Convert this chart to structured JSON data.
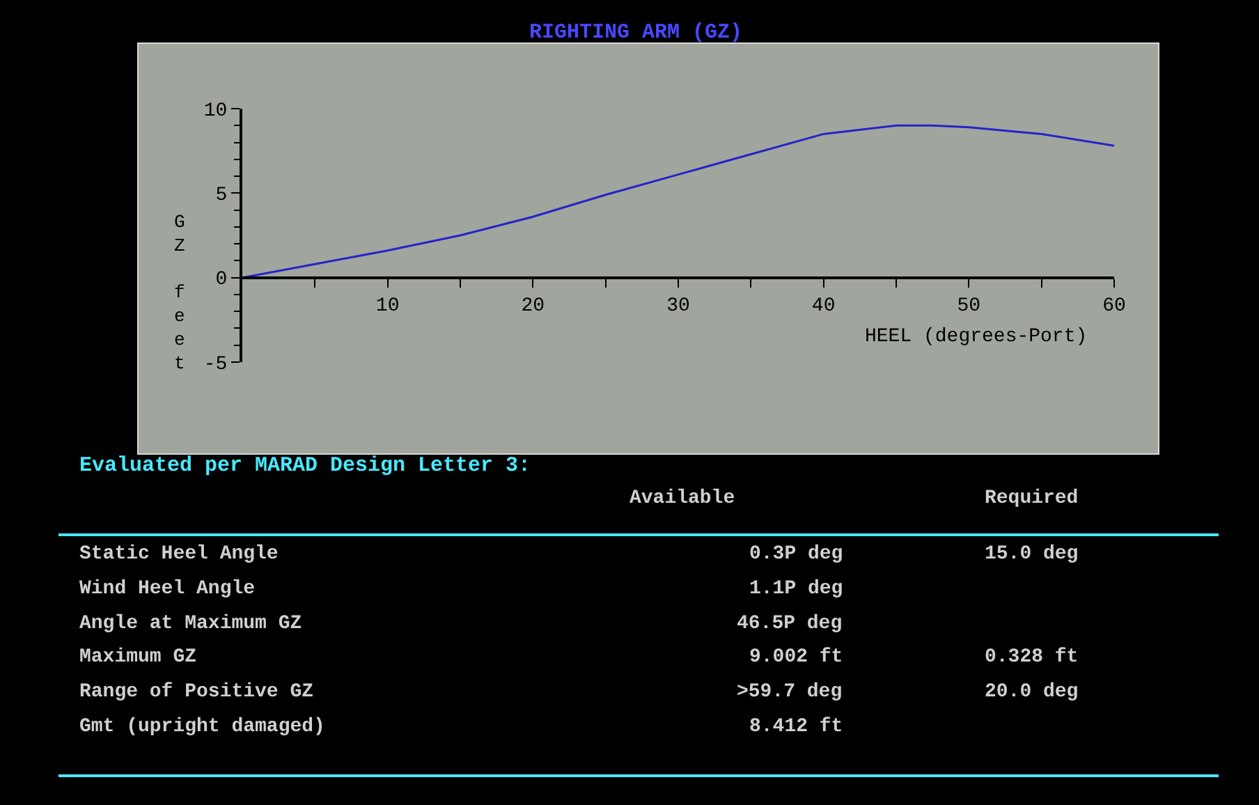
{
  "chart_data": {
    "type": "line",
    "title": "RIGHTING ARM (GZ)",
    "xlabel": "HEEL (degrees-Port)",
    "ylabel": "GZ feet",
    "x": [
      0,
      5,
      10,
      15,
      20,
      25,
      30,
      35,
      40,
      45,
      47.5,
      50,
      55,
      60
    ],
    "series": [
      {
        "color": "#2424c8",
        "values": [
          0,
          0.8,
          1.6,
          2.5,
          3.6,
          4.9,
          6.1,
          7.3,
          8.5,
          9.0,
          9.0,
          8.9,
          8.5,
          7.8
        ]
      }
    ],
    "xlim": [
      0,
      60
    ],
    "ylim": [
      -5,
      10
    ],
    "xticks": [
      {
        "value": 5,
        "label": null
      },
      10,
      {
        "value": 15,
        "label": null
      },
      20,
      {
        "value": 25,
        "label": null
      },
      30,
      {
        "value": 35,
        "label": null
      },
      40,
      {
        "value": 45,
        "label": null
      },
      50,
      {
        "value": 55,
        "label": null
      },
      60
    ],
    "yticks": [
      -5,
      {
        "value": -4,
        "label": null
      },
      {
        "value": -3,
        "label": null
      },
      {
        "value": -2,
        "label": null
      },
      {
        "value": -1,
        "label": null
      },
      0,
      {
        "value": 1,
        "label": null
      },
      {
        "value": 2,
        "label": null
      },
      {
        "value": 3,
        "label": null
      },
      {
        "value": 4,
        "label": null
      },
      5,
      {
        "value": 6,
        "label": null
      },
      {
        "value": 7,
        "label": null
      },
      {
        "value": 8,
        "label": null
      },
      {
        "value": 9,
        "label": null
      },
      10
    ],
    "grid": false,
    "marker": "none",
    "line_style": "solid",
    "annotations": [
      "Evaluated per MARAD Design Letter 3:",
      "Available    Required",
      "Static Heel Angle    0.3P deg    15.0 deg",
      "Wind Heel Angle    1.1P deg",
      "Angle at Maximum GZ    46.5P deg",
      "Maximum GZ    9.002 ft    0.328 ft",
      "Range of Positive GZ    >59.7 deg    20.0 deg",
      "Gmt (upright damaged)    8.412 ft"
    ]
  }
}
